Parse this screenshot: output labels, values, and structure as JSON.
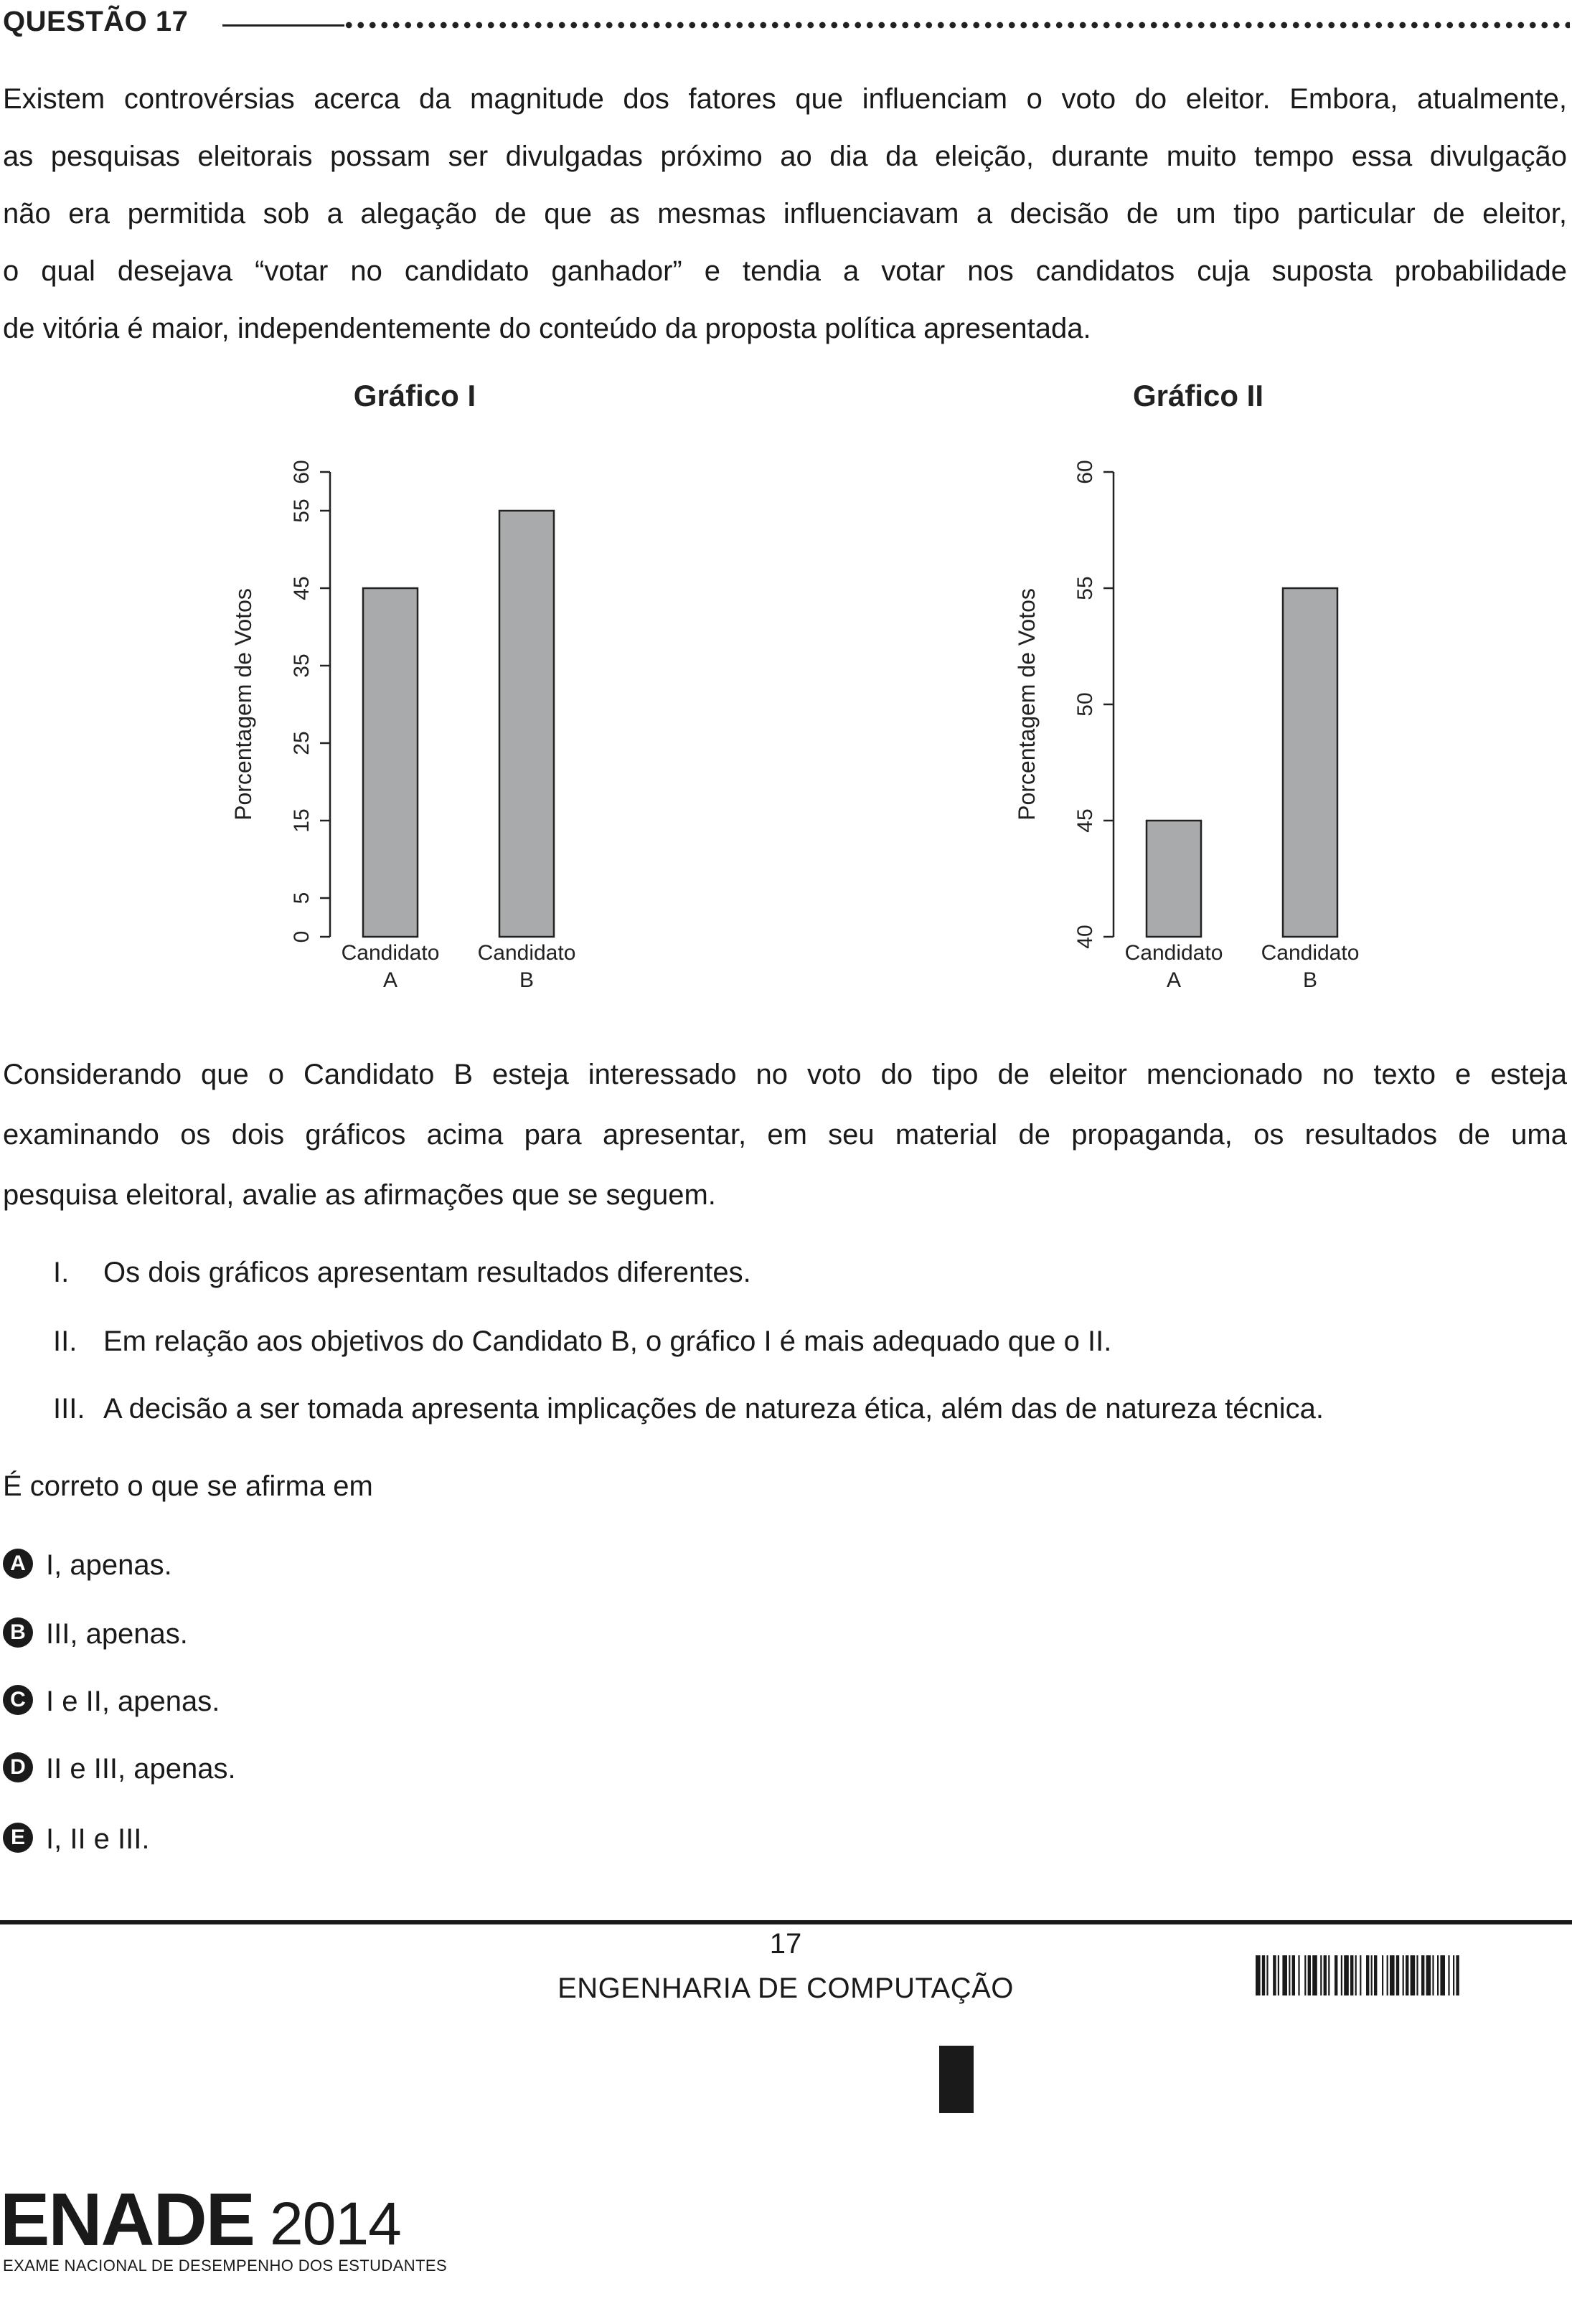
{
  "question": {
    "title": "QUESTÃO 17"
  },
  "intro": {
    "lines": [
      "Existem controvérsias acerca da magnitude dos fatores que influenciam o voto do eleitor. Embora, atualmente,",
      "as pesquisas eleitorais possam ser divulgadas próximo ao dia da eleição, durante muito tempo essa divulgação",
      "não era permitida sob a alegação de que as mesmas influenciavam a decisão de um tipo particular de eleitor,",
      "o qual desejava “votar no candidato ganhador” e tendia a votar nos candidatos cuja suposta probabilidade",
      "de vitória é maior, independentemente do conteúdo da proposta política apresentada."
    ]
  },
  "chart_data": [
    {
      "type": "bar",
      "title": "Gráfico I",
      "categories": [
        "Candidato A",
        "Candidato B"
      ],
      "category_lines": [
        [
          "Candidato",
          "A"
        ],
        [
          "Candidato",
          "B"
        ]
      ],
      "values": [
        45,
        55
      ],
      "ylabel": "Porcentagem de Votos",
      "xlabel": "",
      "ylim": [
        0,
        60
      ],
      "yticks": [
        0,
        5,
        15,
        25,
        35,
        45,
        55,
        60
      ],
      "ytick_labels": [
        "0",
        "5",
        "15",
        "25",
        "35",
        "45",
        "55",
        "60"
      ],
      "grid": false
    },
    {
      "type": "bar",
      "title": "Gráfico II",
      "categories": [
        "Candidato A",
        "Candidato B"
      ],
      "category_lines": [
        [
          "Candidato",
          "A"
        ],
        [
          "Candidato",
          "B"
        ]
      ],
      "values": [
        45,
        55
      ],
      "ylabel": "Porcentagem de Votos",
      "xlabel": "",
      "ylim": [
        40,
        60
      ],
      "yticks": [
        40,
        45,
        50,
        55,
        60
      ],
      "ytick_labels": [
        "40",
        "45",
        "50",
        "55",
        "60"
      ],
      "grid": false
    }
  ],
  "context": {
    "lines": [
      "Considerando que o Candidato B esteja interessado no voto do tipo de eleitor mencionado no texto e esteja",
      "examinando os dois gráficos acima para apresentar, em seu material de propaganda, os resultados de uma",
      "pesquisa eleitoral, avalie as afirmações que se seguem."
    ]
  },
  "statements": [
    {
      "num": "I.",
      "text": "Os dois gráficos apresentam resultados diferentes."
    },
    {
      "num": "II.",
      "text": "Em relação aos objetivos do Candidato B, o gráfico I é mais adequado que o II."
    },
    {
      "num": "III.",
      "text": "A decisão a ser tomada apresenta implicações de natureza ética, além das de natureza técnica."
    }
  ],
  "prompt": "É correto o que se afirma em",
  "options": [
    {
      "letter": "A",
      "text": "I, apenas."
    },
    {
      "letter": "B",
      "text": "III, apenas."
    },
    {
      "letter": "C",
      "text": "I e II, apenas."
    },
    {
      "letter": "D",
      "text": "II e III, apenas."
    },
    {
      "letter": "E",
      "text": "I, II e III."
    }
  ],
  "footer": {
    "page_number": "17",
    "course": "ENGENHARIA DE COMPUTAÇÃO",
    "logo_word": "ENADE",
    "logo_year": "2014",
    "logo_subtitle": "EXAME NACIONAL DE DESEMPENHO DOS ESTUDANTES"
  },
  "colors": {
    "bar_fill": "#a9aaac",
    "text": "#1a1a1a",
    "badge": "#1a1a1a"
  }
}
